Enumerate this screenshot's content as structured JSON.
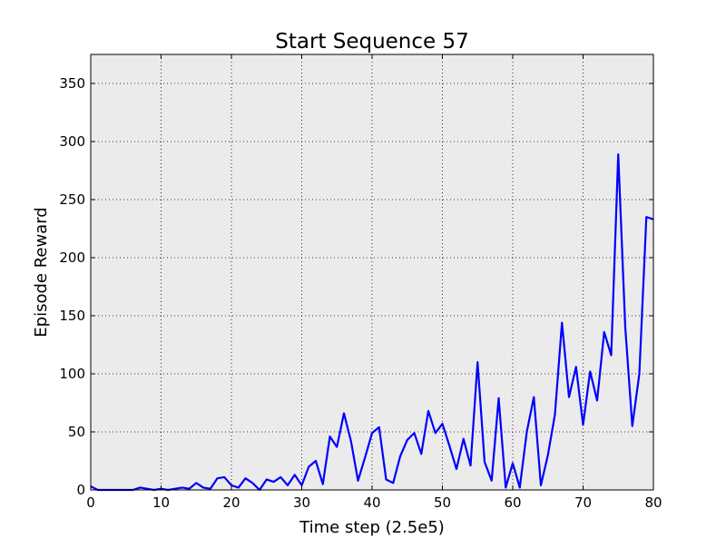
{
  "chart_data": {
    "type": "line",
    "title": "Start Sequence 57",
    "xlabel": "Time step (2.5e5)",
    "ylabel": "Episode Reward",
    "xlim": [
      0,
      80
    ],
    "ylim": [
      0,
      375
    ],
    "xticks": [
      0,
      10,
      20,
      30,
      40,
      50,
      60,
      70,
      80
    ],
    "yticks": [
      0,
      50,
      100,
      150,
      200,
      250,
      300,
      350
    ],
    "grid": true,
    "background": "#ebebeb",
    "series": [
      {
        "color": "#0000ff",
        "x": [
          0,
          1,
          2,
          3,
          4,
          5,
          6,
          7,
          8,
          9,
          10,
          11,
          12,
          13,
          14,
          15,
          16,
          17,
          18,
          19,
          20,
          21,
          22,
          23,
          24,
          25,
          26,
          27,
          28,
          29,
          30,
          31,
          32,
          33,
          34,
          35,
          36,
          37,
          38,
          39,
          40,
          41,
          42,
          43,
          44,
          45,
          46,
          47,
          48,
          49,
          50,
          51,
          52,
          53,
          54,
          55,
          56,
          57,
          58,
          59,
          60,
          61,
          62,
          63,
          64,
          65,
          66,
          67,
          68,
          69,
          70,
          71,
          72,
          73,
          74,
          75,
          76,
          77,
          78,
          79,
          80
        ],
        "values": [
          3,
          0,
          0,
          0,
          0,
          0,
          0,
          2,
          1,
          0,
          1,
          0,
          1,
          2,
          1,
          6,
          2,
          1,
          10,
          11,
          4,
          2,
          10,
          6,
          0,
          9,
          7,
          11,
          4,
          13,
          4,
          20,
          25,
          5,
          46,
          37,
          66,
          42,
          8,
          28,
          49,
          54,
          9,
          6,
          29,
          43,
          49,
          31,
          68,
          49,
          57,
          38,
          18,
          44,
          21,
          110,
          24,
          8,
          79,
          2,
          23,
          2,
          50,
          80,
          4,
          30,
          65,
          144,
          80,
          106,
          56,
          102,
          77,
          136,
          116,
          289,
          140,
          55,
          100,
          235,
          233
        ]
      }
    ]
  }
}
